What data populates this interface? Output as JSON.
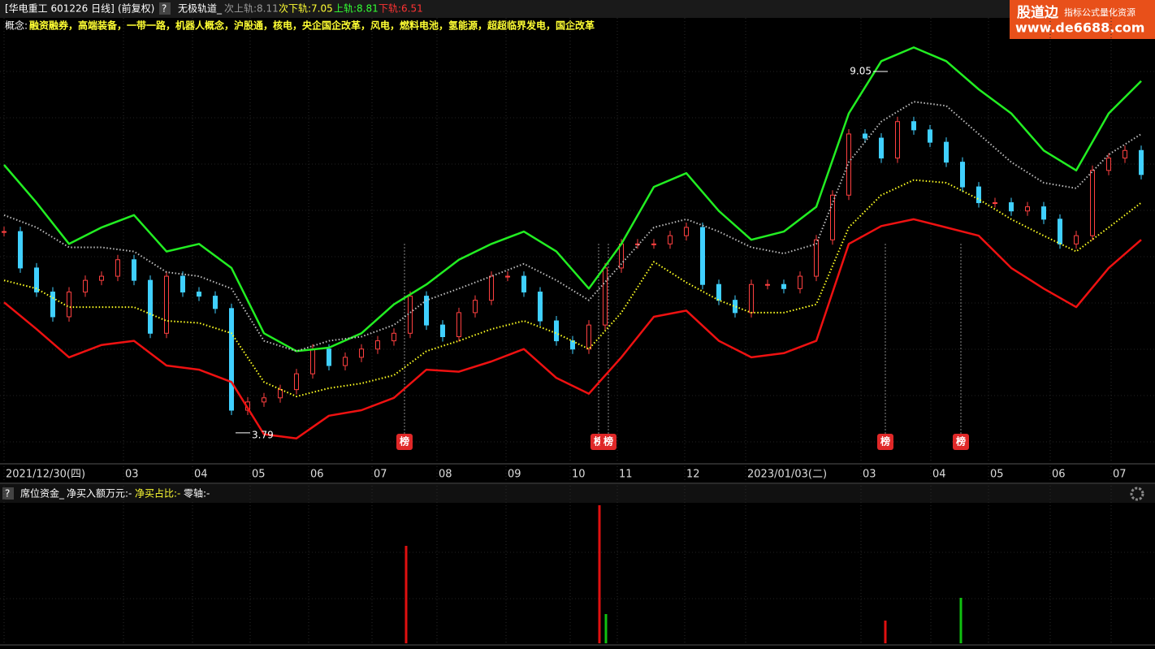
{
  "header": {
    "title": "[华电重工 601226 日线]",
    "adjust": "(前复权)",
    "help": "?",
    "indicator": "无极轨道_",
    "readouts": [
      "次上轨:8.11",
      "次下轨:7.05",
      "上轨:8.81",
      "下轨:6.51"
    ]
  },
  "logo": {
    "name": "股道边",
    "tagline": "指标公式量化资源",
    "url": "www.de6688.com"
  },
  "concepts": {
    "label": "概念:",
    "text": "融资融券，高端装备，一带一路，机器人概念，沪股通，核电，央企国企改革，风电，燃料电池，氢能源，超超临界发电，国企改革"
  },
  "sub_header": {
    "help": "?",
    "name": "席位资金_",
    "items": [
      "净买入额万元:-",
      "净买占比:-",
      "零轴:-"
    ]
  },
  "chart_data": [
    {
      "type": "candlestick",
      "up_color": "#ff4040",
      "down_color": "#40d0ff",
      "x": [
        0,
        1,
        2,
        3,
        4,
        5,
        6,
        7,
        8,
        9,
        10,
        11,
        12,
        13,
        14,
        15,
        16,
        17,
        18,
        19,
        20,
        21,
        22,
        23,
        24,
        25,
        26,
        27,
        28,
        29,
        30,
        31,
        32,
        33,
        34,
        35,
        36,
        37,
        38,
        39,
        40,
        41,
        42,
        43,
        44,
        45,
        46,
        47,
        48,
        49,
        50,
        51,
        52,
        53,
        54,
        55,
        56,
        57,
        58,
        59,
        60,
        61,
        62,
        63,
        64,
        65,
        66,
        67,
        68,
        69,
        70
      ],
      "values": [
        6.72,
        6.19,
        5.84,
        5.48,
        5.84,
        6.01,
        6.07,
        6.31,
        6.01,
        5.24,
        6.07,
        5.84,
        5.78,
        5.6,
        4.12,
        4.24,
        4.3,
        4.42,
        4.65,
        5.01,
        4.77,
        4.89,
        5.01,
        5.13,
        5.24,
        5.78,
        5.36,
        5.19,
        5.54,
        5.72,
        6.07,
        6.07,
        5.84,
        5.42,
        5.13,
        5.01,
        5.36,
        6.19,
        6.54,
        6.54,
        6.54,
        6.66,
        6.78,
        5.95,
        5.72,
        5.54,
        5.95,
        5.95,
        5.89,
        6.07,
        6.6,
        7.25,
        8.14,
        8.08,
        7.79,
        8.32,
        8.2,
        8.02,
        7.73,
        7.37,
        7.14,
        7.14,
        7.02,
        7.08,
        6.9,
        6.54,
        6.66,
        7.61,
        7.79,
        7.9,
        7.55
      ],
      "xlim": [
        0,
        70.85
      ],
      "ylim": [
        3.47,
        9.83
      ],
      "xticks": [
        {
          "value": 0,
          "label": "2021/12/30(四)"
        },
        {
          "value": 7.35,
          "label": "03"
        },
        {
          "value": 11.6,
          "label": "04"
        },
        {
          "value": 15.15,
          "label": "05"
        },
        {
          "value": 18.75,
          "label": "06"
        },
        {
          "value": 22.65,
          "label": "07"
        },
        {
          "value": 26.65,
          "label": "08"
        },
        {
          "value": 30.9,
          "label": "09"
        },
        {
          "value": 34.85,
          "label": "10"
        },
        {
          "value": 37.75,
          "label": "11"
        },
        {
          "value": 41.9,
          "label": "12"
        },
        {
          "value": 45.65,
          "label": "2023/01/03(二)"
        },
        {
          "value": 52.75,
          "label": "03"
        },
        {
          "value": 57.05,
          "label": "04"
        },
        {
          "value": 60.6,
          "label": "05"
        },
        {
          "value": 64.4,
          "label": "06"
        },
        {
          "value": 68.15,
          "label": "07"
        }
      ],
      "markers": [
        {
          "x": 24.65,
          "label": "榜"
        },
        {
          "x": 36.6,
          "label": "榜"
        },
        {
          "x": 37.2,
          "label": "榜"
        },
        {
          "x": 54.25,
          "label": "榜"
        },
        {
          "x": 58.9,
          "label": "榜"
        }
      ]
    },
    {
      "type": "line",
      "xlim": [
        0,
        70.85
      ],
      "ylim": [
        3.47,
        9.83
      ],
      "x": [
        0,
        2,
        4,
        6,
        8,
        10,
        12,
        14,
        16,
        18,
        20,
        22,
        24,
        26,
        28,
        30,
        32,
        34,
        36,
        38,
        40,
        42,
        44,
        46,
        48,
        50,
        52,
        54,
        56,
        58,
        60,
        62,
        64,
        66,
        68,
        70
      ],
      "series": [
        {
          "color": "#22ee22",
          "dash": "solid",
          "values": [
            7.69,
            7.14,
            6.54,
            6.78,
            6.96,
            6.43,
            6.54,
            6.19,
            5.24,
            4.98,
            5.03,
            5.24,
            5.66,
            5.95,
            6.31,
            6.54,
            6.72,
            6.43,
            5.89,
            6.54,
            7.37,
            7.57,
            7.02,
            6.6,
            6.72,
            7.08,
            8.44,
            9.2,
            9.4,
            9.2,
            8.79,
            8.44,
            7.9,
            7.61,
            8.44,
            8.91
          ]
        },
        {
          "color": "#ee1111",
          "dash": "solid",
          "values": [
            5.69,
            5.3,
            4.89,
            5.07,
            5.13,
            4.77,
            4.71,
            4.53,
            3.77,
            3.71,
            4.04,
            4.12,
            4.3,
            4.71,
            4.68,
            4.83,
            5.01,
            4.59,
            4.36,
            4.89,
            5.48,
            5.57,
            5.13,
            4.89,
            4.95,
            5.13,
            6.54,
            6.8,
            6.9,
            6.78,
            6.66,
            6.19,
            5.89,
            5.62,
            6.19,
            6.6
          ]
        },
        {
          "color": "#ffff22",
          "dash": "dotted",
          "values": [
            6.01,
            5.89,
            5.62,
            5.62,
            5.62,
            5.42,
            5.39,
            5.24,
            4.53,
            4.32,
            4.44,
            4.51,
            4.63,
            4.98,
            5.13,
            5.3,
            5.42,
            5.24,
            5.01,
            5.54,
            6.28,
            5.98,
            5.72,
            5.54,
            5.54,
            5.66,
            6.78,
            7.25,
            7.47,
            7.43,
            7.19,
            6.9,
            6.66,
            6.43,
            6.78,
            7.14
          ]
        },
        {
          "color": "#bbbbbb",
          "dash": "dotted",
          "values": [
            6.96,
            6.78,
            6.49,
            6.49,
            6.43,
            6.13,
            6.07,
            5.89,
            5.13,
            4.98,
            5.13,
            5.19,
            5.36,
            5.72,
            5.89,
            6.07,
            6.25,
            6.01,
            5.72,
            6.25,
            6.78,
            6.9,
            6.72,
            6.49,
            6.4,
            6.54,
            7.73,
            8.32,
            8.61,
            8.55,
            8.14,
            7.73,
            7.43,
            7.35,
            7.84,
            8.14
          ]
        }
      ],
      "annotations": [
        {
          "x": 54.4,
          "value": 9.05,
          "side": "left"
        },
        {
          "x": 14.25,
          "value": 3.79,
          "side": "right"
        }
      ]
    },
    {
      "type": "bar",
      "xlim": [
        0,
        70.85
      ],
      "ylim": [
        0,
        170
      ],
      "x": [
        24.75,
        36.65,
        37.05,
        54.25,
        58.9
      ],
      "values": [
        120,
        170,
        36,
        28,
        56
      ],
      "colors": [
        "#e01010",
        "#e01010",
        "#10c010",
        "#e01010",
        "#10c010"
      ]
    }
  ]
}
